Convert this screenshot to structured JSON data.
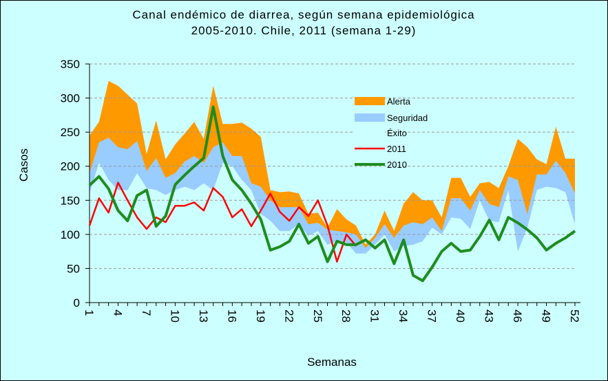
{
  "chart_data": {
    "type": "line",
    "title": [
      "Canal  endémico de diarrea, según semana epidemiológica",
      "2005-2010.  Chile, 2011 (semana 1-29)"
    ],
    "x_label": "Semanas",
    "y_label": "Casos",
    "categories": [
      1,
      null,
      null,
      4,
      null,
      null,
      7,
      null,
      null,
      10,
      null,
      null,
      13,
      null,
      null,
      16,
      null,
      null,
      19,
      null,
      null,
      22,
      null,
      null,
      25,
      null,
      null,
      28,
      null,
      null,
      31,
      null,
      null,
      34,
      null,
      null,
      37,
      null,
      null,
      40,
      null,
      null,
      43,
      null,
      null,
      46,
      null,
      null,
      49,
      null,
      null,
      52
    ],
    "ylim": [
      0,
      350
    ],
    "yticks": [
      0,
      50,
      100,
      150,
      200,
      250,
      300,
      350
    ],
    "grid": true,
    "background": "#ccffff",
    "series": [
      {
        "name": "Alerta",
        "type": "area",
        "color": "#ff9900",
        "values": [
          245,
          265,
          325,
          318,
          305,
          292,
          218,
          267,
          210,
          232,
          248,
          265,
          240,
          318,
          262,
          262,
          264,
          255,
          243,
          165,
          162,
          163,
          160,
          130,
          132,
          110,
          137,
          122,
          113,
          85,
          100,
          135,
          105,
          145,
          162,
          150,
          150,
          125,
          183,
          183,
          155,
          175,
          177,
          168,
          200,
          240,
          228,
          210,
          203,
          258,
          211,
          211
        ]
      },
      {
        "name": "Seguridad",
        "type": "area",
        "color": "#99ccff",
        "values": [
          190,
          235,
          242,
          228,
          225,
          237,
          193,
          212,
          183,
          190,
          207,
          215,
          205,
          228,
          235,
          215,
          215,
          175,
          170,
          150,
          140,
          140,
          140,
          115,
          117,
          107,
          105,
          103,
          100,
          80,
          95,
          115,
          95,
          113,
          118,
          115,
          125,
          105,
          153,
          153,
          135,
          165,
          145,
          140,
          185,
          180,
          130,
          188,
          188,
          208,
          190,
          160
        ]
      },
      {
        "name": "Éxito",
        "type": "area",
        "color": "#ccffff",
        "values": [
          160,
          205,
          180,
          165,
          165,
          190,
          168,
          165,
          158,
          165,
          170,
          165,
          175,
          165,
          205,
          200,
          180,
          165,
          130,
          120,
          105,
          105,
          115,
          98,
          105,
          85,
          90,
          88,
          72,
          72,
          85,
          100,
          75,
          83,
          85,
          90,
          110,
          100,
          125,
          123,
          108,
          150,
          120,
          118,
          165,
          75,
          110,
          165,
          170,
          168,
          162,
          115
        ]
      },
      {
        "name": "2011",
        "type": "line",
        "color": "#ff0000",
        "values": [
          113,
          153,
          132,
          176,
          150,
          125,
          108,
          125,
          118,
          142,
          142,
          147,
          135,
          168,
          155,
          125,
          137,
          112,
          135,
          160,
          133,
          120,
          140,
          127,
          150,
          113,
          60,
          100,
          83,
          null,
          null,
          null,
          null,
          null,
          null,
          null,
          null,
          null,
          null,
          null,
          null,
          null,
          null,
          null,
          null,
          null,
          null,
          null,
          null,
          null,
          null,
          null
        ]
      },
      {
        "name": "2010",
        "type": "line",
        "color": "#1e8c1e",
        "values": [
          172,
          185,
          167,
          135,
          120,
          157,
          165,
          112,
          127,
          173,
          187,
          200,
          212,
          287,
          215,
          180,
          165,
          145,
          122,
          77,
          82,
          90,
          115,
          87,
          97,
          60,
          90,
          85,
          85,
          92,
          80,
          92,
          57,
          92,
          40,
          32,
          52,
          75,
          87,
          75,
          77,
          97,
          121,
          92,
          125,
          117,
          107,
          95,
          77,
          87,
          95,
          105
        ]
      }
    ]
  }
}
